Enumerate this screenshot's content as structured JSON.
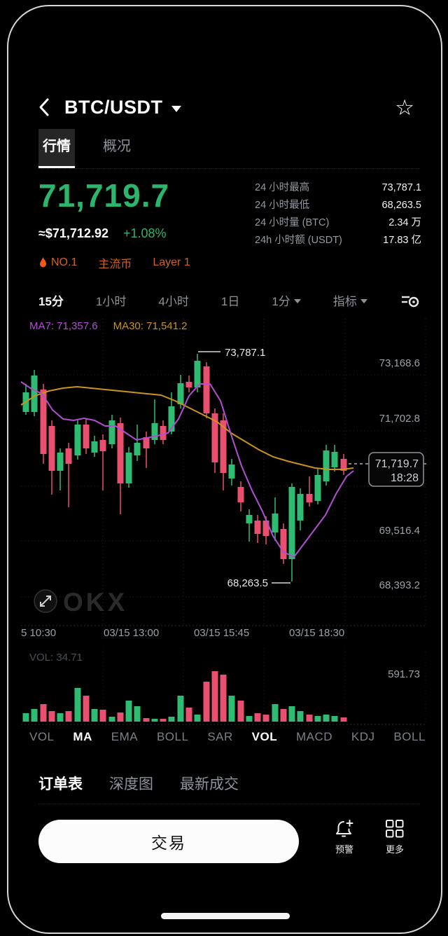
{
  "theme": {
    "up": "#2fbc72",
    "down": "#e94f6e",
    "ma7": "#b24fd0",
    "ma30": "#c9941d",
    "accent_green": "#2cb56d",
    "badge_orange": "#cd6420"
  },
  "header": {
    "title": "BTC/USDT"
  },
  "tabs": {
    "market": "行情",
    "overview": "概况"
  },
  "price": {
    "last": "71,719.7",
    "usd": "≈$71,712.92",
    "change": "+1.08%"
  },
  "stats": [
    {
      "label": "24 小时最高",
      "value": "73,787.1"
    },
    {
      "label": "24 小时最低",
      "value": "68,263.5"
    },
    {
      "label": "24 小时量 (BTC)",
      "value": "2.34 万"
    },
    {
      "label": "24h 小时额 (USDT)",
      "value": "17.83 亿"
    }
  ],
  "badges": {
    "rank": "NO.1",
    "mainstream": "主流币",
    "layer": "Layer 1"
  },
  "timeframes": {
    "t1": "15分",
    "t2": "1小时",
    "t3": "4小时",
    "t4": "1日",
    "t5": "1分",
    "indicator": "指标"
  },
  "chart": {
    "ma7_label": "MA7: 71,357.6",
    "ma30_label": "MA30: 71,541.2",
    "high_annotation": "73,787.1",
    "low_annotation": "68,263.5",
    "price_tag": {
      "price": "71,719.7",
      "time": "18:28"
    },
    "y_axis_labels": [
      "73,168.6",
      "71,702.8",
      "69,516.4",
      "68,393.2"
    ],
    "x_axis_labels": [
      "5 10:30",
      "03/15 13:00",
      "03/15 15:45",
      "03/15 18:30"
    ],
    "watermark": "OKX",
    "candles": [
      [
        7,
        93,
        105,
        133,
        137,
        "g"
      ],
      [
        19,
        73,
        81,
        133,
        139,
        "g"
      ],
      [
        32,
        93,
        101,
        193,
        207,
        "r"
      ],
      [
        44,
        145,
        153,
        217,
        251,
        "r"
      ],
      [
        56,
        185,
        191,
        217,
        245,
        "g"
      ],
      [
        68,
        177,
        185,
        207,
        269,
        "r"
      ],
      [
        81,
        143,
        151,
        195,
        201,
        "g"
      ],
      [
        93,
        143,
        151,
        185,
        193,
        "r"
      ],
      [
        105,
        167,
        175,
        191,
        197,
        "g"
      ],
      [
        117,
        165,
        173,
        189,
        245,
        "r"
      ],
      [
        130,
        137,
        145,
        179,
        185,
        "g"
      ],
      [
        142,
        141,
        149,
        235,
        279,
        "r"
      ],
      [
        154,
        183,
        191,
        235,
        241,
        "g"
      ],
      [
        166,
        151,
        177,
        195,
        203,
        "g"
      ],
      [
        179,
        161,
        169,
        185,
        213,
        "r"
      ],
      [
        191,
        115,
        149,
        173,
        179,
        "g"
      ],
      [
        203,
        145,
        153,
        173,
        179,
        "r"
      ],
      [
        215,
        105,
        125,
        161,
        165,
        "g"
      ],
      [
        228,
        80,
        92,
        122,
        128,
        "g"
      ],
      [
        240,
        81,
        90,
        98,
        105,
        "r"
      ],
      [
        252,
        50,
        60,
        98,
        105,
        "g"
      ],
      [
        265,
        62,
        68,
        135,
        142,
        "r"
      ],
      [
        277,
        128,
        135,
        205,
        220,
        "r"
      ],
      [
        289,
        135,
        145,
        220,
        245,
        "r"
      ],
      [
        301,
        200,
        208,
        228,
        238,
        "g"
      ],
      [
        314,
        232,
        240,
        262,
        275,
        "r"
      ],
      [
        326,
        272,
        280,
        292,
        318,
        "g"
      ],
      [
        338,
        280,
        288,
        307,
        320,
        "r"
      ],
      [
        350,
        282,
        288,
        310,
        322,
        "r"
      ],
      [
        363,
        255,
        278,
        305,
        317,
        "g"
      ],
      [
        375,
        292,
        300,
        343,
        350,
        "r"
      ],
      [
        387,
        235,
        240,
        343,
        375,
        "g"
      ],
      [
        399,
        242,
        250,
        288,
        302,
        "g"
      ],
      [
        412,
        225,
        250,
        262,
        268,
        "r"
      ],
      [
        424,
        213,
        223,
        260,
        265,
        "g"
      ],
      [
        436,
        180,
        188,
        232,
        238,
        "g"
      ],
      [
        448,
        180,
        190,
        212,
        218,
        "g"
      ],
      [
        461,
        193,
        200,
        217,
        223,
        "r"
      ]
    ],
    "ma7": [
      [
        0,
        90
      ],
      [
        15,
        100
      ],
      [
        30,
        107
      ],
      [
        45,
        130
      ],
      [
        60,
        143
      ],
      [
        75,
        145
      ],
      [
        90,
        142
      ],
      [
        105,
        145
      ],
      [
        120,
        153
      ],
      [
        135,
        153
      ],
      [
        150,
        163
      ],
      [
        165,
        173
      ],
      [
        180,
        170
      ],
      [
        195,
        167
      ],
      [
        210,
        163
      ],
      [
        225,
        143
      ],
      [
        240,
        110
      ],
      [
        255,
        93
      ],
      [
        270,
        93
      ],
      [
        285,
        117
      ],
      [
        300,
        165
      ],
      [
        315,
        210
      ],
      [
        330,
        245
      ],
      [
        345,
        275
      ],
      [
        360,
        310
      ],
      [
        375,
        333
      ],
      [
        390,
        340
      ],
      [
        405,
        320
      ],
      [
        420,
        300
      ],
      [
        435,
        280
      ],
      [
        450,
        250
      ],
      [
        465,
        225
      ],
      [
        475,
        217
      ]
    ],
    "ma30": [
      [
        0,
        123
      ],
      [
        20,
        110
      ],
      [
        40,
        103
      ],
      [
        60,
        99
      ],
      [
        80,
        97
      ],
      [
        100,
        99
      ],
      [
        120,
        101
      ],
      [
        140,
        103
      ],
      [
        160,
        105
      ],
      [
        180,
        107
      ],
      [
        200,
        109
      ],
      [
        220,
        117
      ],
      [
        240,
        127
      ],
      [
        260,
        137
      ],
      [
        280,
        147
      ],
      [
        300,
        163
      ],
      [
        320,
        175
      ],
      [
        340,
        187
      ],
      [
        360,
        197
      ],
      [
        380,
        203
      ],
      [
        400,
        208
      ],
      [
        420,
        213
      ],
      [
        440,
        215
      ],
      [
        460,
        215
      ],
      [
        475,
        213
      ]
    ]
  },
  "volume": {
    "label": "VOL: 34.71",
    "max_label": "591.73",
    "bars": [
      [
        7,
        12,
        "g"
      ],
      [
        19,
        18,
        "g"
      ],
      [
        32,
        25,
        "r"
      ],
      [
        44,
        15,
        "r"
      ],
      [
        56,
        12,
        "g"
      ],
      [
        68,
        15,
        "r"
      ],
      [
        81,
        48,
        "g"
      ],
      [
        93,
        37,
        "r"
      ],
      [
        105,
        18,
        "g"
      ],
      [
        117,
        17,
        "r"
      ],
      [
        130,
        7,
        "g"
      ],
      [
        142,
        13,
        "r"
      ],
      [
        154,
        30,
        "g"
      ],
      [
        166,
        22,
        "g"
      ],
      [
        179,
        5,
        "r"
      ],
      [
        191,
        4,
        "g"
      ],
      [
        203,
        4,
        "r"
      ],
      [
        215,
        7,
        "g"
      ],
      [
        228,
        37,
        "g"
      ],
      [
        240,
        20,
        "r"
      ],
      [
        252,
        10,
        "g"
      ],
      [
        265,
        57,
        "r"
      ],
      [
        277,
        72,
        "r"
      ],
      [
        289,
        67,
        "r"
      ],
      [
        301,
        37,
        "g"
      ],
      [
        314,
        30,
        "r"
      ],
      [
        326,
        8,
        "g"
      ],
      [
        338,
        12,
        "r"
      ],
      [
        350,
        10,
        "r"
      ],
      [
        363,
        25,
        "g"
      ],
      [
        375,
        18,
        "r"
      ],
      [
        387,
        22,
        "g"
      ],
      [
        399,
        15,
        "g"
      ],
      [
        412,
        10,
        "r"
      ],
      [
        424,
        8,
        "g"
      ],
      [
        436,
        10,
        "g"
      ],
      [
        448,
        8,
        "g"
      ],
      [
        461,
        6,
        "r"
      ]
    ]
  },
  "indicator_tabs": [
    {
      "label": "VOL",
      "active": false
    },
    {
      "label": "MA",
      "active": true
    },
    {
      "label": "EMA",
      "active": false
    },
    {
      "label": "BOLL",
      "active": false
    },
    {
      "label": "SAR",
      "active": false
    },
    {
      "label": "VOL",
      "active": true
    },
    {
      "label": "MACD",
      "active": false
    },
    {
      "label": "KDJ",
      "active": false
    },
    {
      "label": "BOLL",
      "active": false
    }
  ],
  "bottom_tabs": {
    "orderbook": "订单表",
    "depth": "深度图",
    "trades": "最新成交"
  },
  "action_bar": {
    "trade": "交易",
    "alert": "预警",
    "more": "更多"
  }
}
